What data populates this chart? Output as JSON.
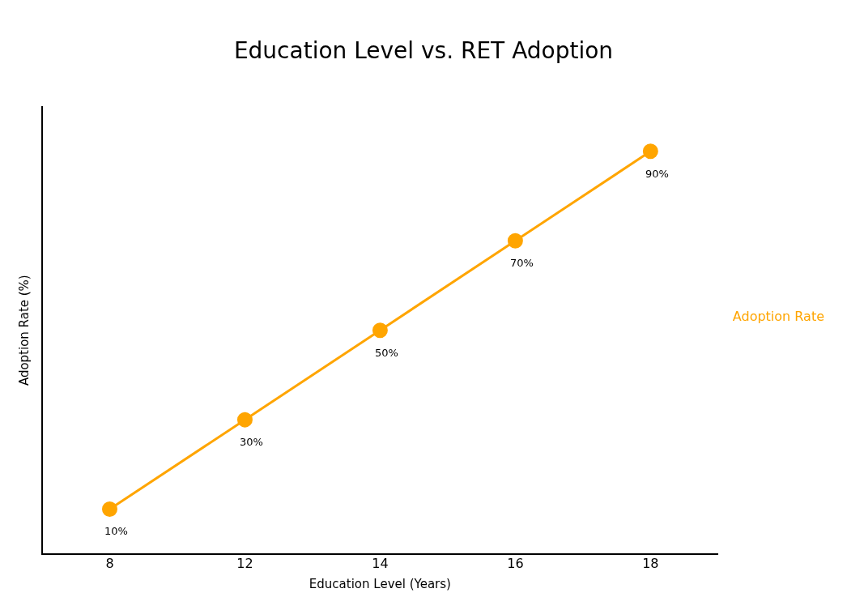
{
  "chart_data": {
    "type": "line",
    "title": "Education Level vs. RET Adoption",
    "xlabel": "Education Level (Years)",
    "ylabel": "Adoption Rate (%)",
    "categories": [
      "8",
      "12",
      "14",
      "16",
      "18"
    ],
    "series": [
      {
        "name": "Adoption Rate",
        "color": "#ffa500",
        "values": [
          10,
          30,
          50,
          70,
          90
        ],
        "value_labels": [
          "10%",
          "30%",
          "50%",
          "70%",
          "90%"
        ]
      }
    ],
    "marker": "circle",
    "line_style": "solid",
    "grid": false,
    "legend": "right",
    "tick_labels": "x"
  }
}
